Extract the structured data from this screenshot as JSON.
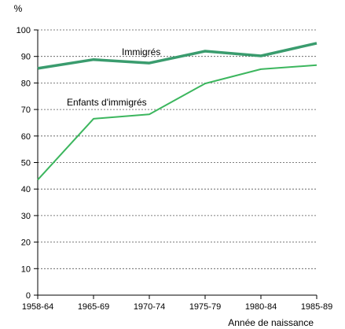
{
  "chart_data": {
    "type": "line",
    "ylabel": "%",
    "xlabel": "Année de naissance",
    "categories": [
      "1958-64",
      "1965-69",
      "1970-74",
      "1975-79",
      "1980-84",
      "1985-89"
    ],
    "ylim": [
      0,
      100
    ],
    "yticks": [
      0,
      10,
      20,
      30,
      40,
      50,
      60,
      70,
      80,
      90,
      100
    ],
    "grid": true,
    "series": [
      {
        "name": "Immigrés",
        "values": [
          85.5,
          88.8,
          87.5,
          92.0,
          90.2,
          95.0
        ],
        "color": "#3a9c6e"
      },
      {
        "name": "Enfants d'immigrés",
        "values": [
          43.5,
          66.5,
          68.2,
          79.8,
          85.2,
          86.7
        ],
        "color": "#3cb65e"
      }
    ]
  }
}
